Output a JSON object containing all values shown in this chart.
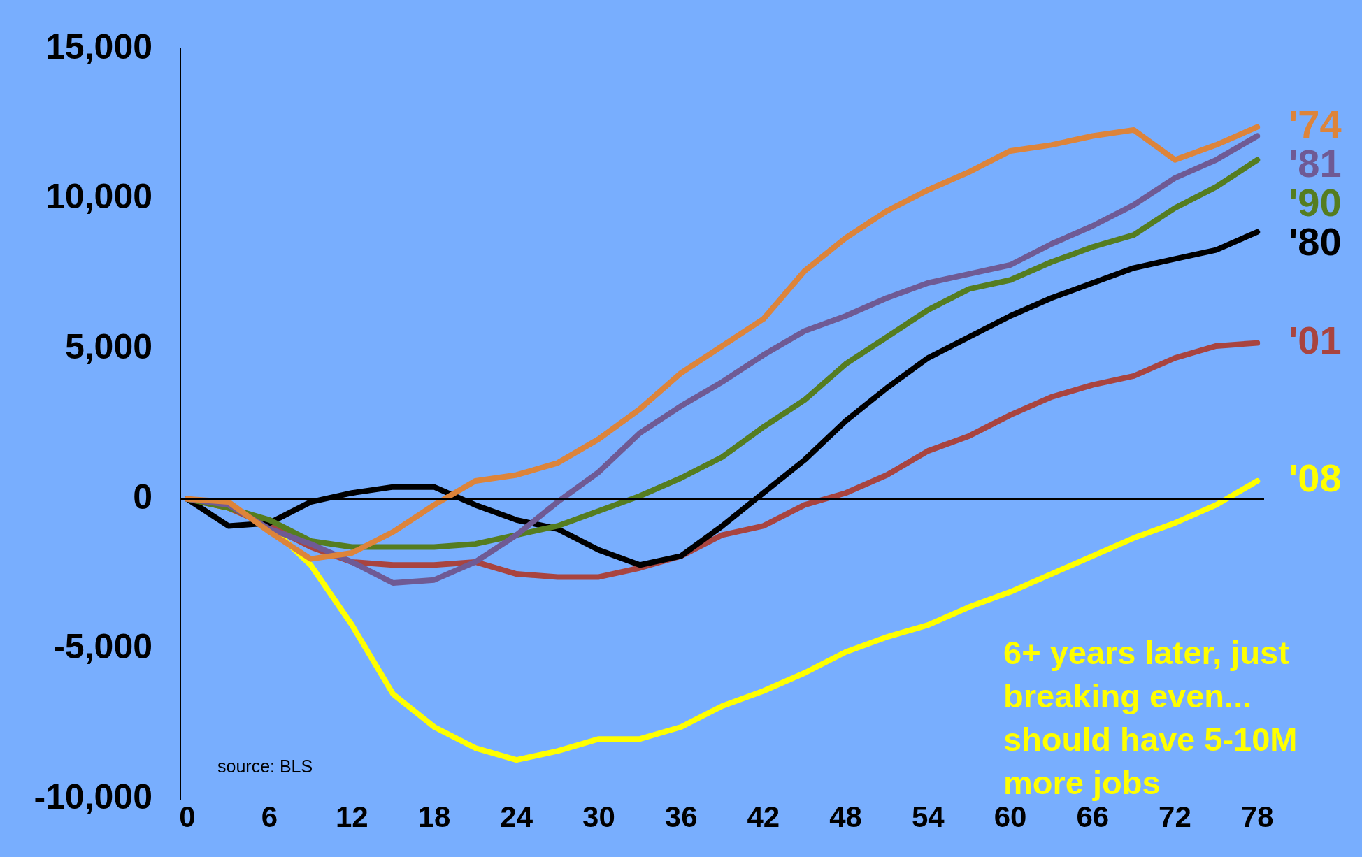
{
  "chart_data": {
    "type": "line",
    "x": [
      0,
      3,
      6,
      9,
      12,
      15,
      18,
      21,
      24,
      27,
      30,
      33,
      36,
      39,
      42,
      45,
      48,
      51,
      54,
      57,
      60,
      63,
      66,
      69,
      72,
      75,
      78
    ],
    "xlim": [
      -0.5,
      78.5
    ],
    "xticks": [
      0,
      6,
      12,
      18,
      24,
      30,
      36,
      42,
      48,
      54,
      60,
      66,
      72,
      78
    ],
    "ylim": [
      -10000,
      15000
    ],
    "yticks": [
      {
        "value": -10000,
        "label": "-10,000"
      },
      {
        "value": -5000,
        "label": "-5,000"
      },
      0,
      {
        "value": 5000,
        "label": "5,000"
      },
      {
        "value": 10000,
        "label": "10,000"
      },
      {
        "value": 15000,
        "label": "15,000"
      }
    ],
    "grid": false,
    "legend": false,
    "marker": "none",
    "line_style": "solid",
    "series": [
      {
        "name": "'74",
        "color": "#dd843a",
        "values": [
          0,
          -100,
          -1100,
          -2000,
          -1800,
          -1100,
          -200,
          600,
          800,
          1200,
          2000,
          3000,
          4200,
          5100,
          6000,
          7600,
          8700,
          9600,
          10300,
          10900,
          11600,
          11800,
          12100,
          12300,
          11300,
          11800,
          12400
        ]
      },
      {
        "name": "'81",
        "color": "#6f5a94",
        "values": [
          0,
          -200,
          -1000,
          -1500,
          -2100,
          -2800,
          -2700,
          -2100,
          -1200,
          -100,
          900,
          2200,
          3100,
          3900,
          4800,
          5600,
          6100,
          6700,
          7200,
          7500,
          7800,
          8500,
          9100,
          9800,
          10700,
          11300,
          12100
        ]
      },
      {
        "name": "'90",
        "color": "#557d20",
        "values": [
          0,
          -300,
          -700,
          -1400,
          -1600,
          -1600,
          -1600,
          -1500,
          -1200,
          -900,
          -400,
          100,
          700,
          1400,
          2400,
          3300,
          4500,
          5400,
          6300,
          7000,
          7300,
          7900,
          8400,
          8800,
          9700,
          10400,
          11300
        ]
      },
      {
        "name": "'80",
        "color": "#000000",
        "values": [
          0,
          -900,
          -800,
          -100,
          200,
          400,
          400,
          -200,
          -700,
          -1000,
          -1700,
          -2200,
          -1900,
          -900,
          200,
          1300,
          2600,
          3700,
          4700,
          5400,
          6100,
          6700,
          7200,
          7700,
          8000,
          8300,
          8900
        ]
      },
      {
        "name": "'01",
        "color": "#a9443f",
        "values": [
          0,
          -300,
          -900,
          -1600,
          -2100,
          -2200,
          -2200,
          -2100,
          -2500,
          -2600,
          -2600,
          -2300,
          -1900,
          -1200,
          -900,
          -200,
          200,
          800,
          1600,
          2100,
          2800,
          3400,
          3800,
          4100,
          4700,
          5100,
          5200
        ]
      },
      {
        "name": "'08",
        "color": "#ffff00",
        "values": [
          0,
          -300,
          -900,
          -2200,
          -4200,
          -6500,
          -7600,
          -8300,
          -8700,
          -8400,
          -8000,
          -8000,
          -7600,
          -6900,
          -6400,
          -5800,
          -5100,
          -4600,
          -4200,
          -3600,
          -3100,
          -2500,
          -1900,
          -1300,
          -800,
          -200,
          600
        ]
      }
    ],
    "ref_lines": [
      {
        "axis": "y",
        "value": 0,
        "color": "#000000"
      }
    ],
    "annotations": [
      "source: BLS",
      "6+ years later, just breaking even... should have 5-10M more jobs"
    ]
  }
}
